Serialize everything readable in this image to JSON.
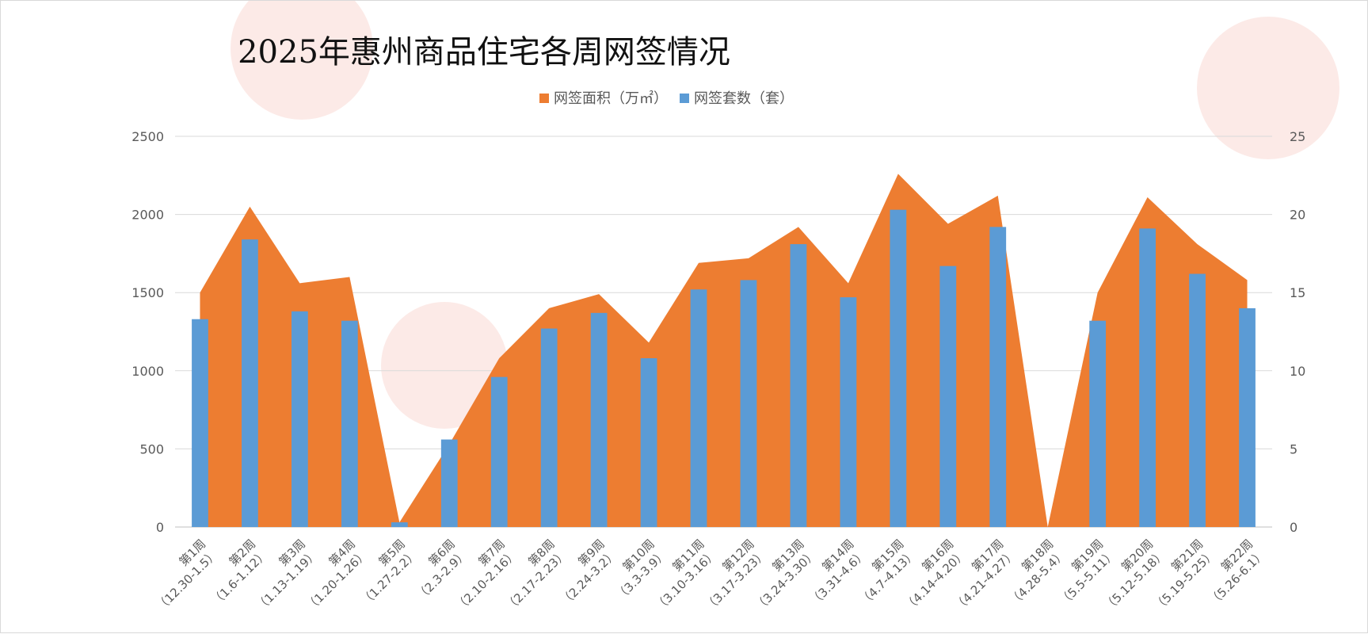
{
  "chart_data": {
    "type": "bar",
    "title": "2025年惠州商品住宅各周网签情况",
    "legend_position": "top",
    "grid": true,
    "categories": [
      [
        "第1周",
        "（12.30-1.5）"
      ],
      [
        "第2周",
        "（1.6-1.12）"
      ],
      [
        "第3周",
        "（1.13-1.19）"
      ],
      [
        "第4周",
        "（1.20-1.26）"
      ],
      [
        "第5周",
        "（1.27-2.2）"
      ],
      [
        "第6周",
        "（2.3-2.9）"
      ],
      [
        "第7周",
        "（2.10-2.16）"
      ],
      [
        "第8周",
        "（2.17-2.23）"
      ],
      [
        "第9周",
        "（2.24-3.2）"
      ],
      [
        "第10周",
        "（3.3-3.9）"
      ],
      [
        "第11周",
        "（3.10-3.16）"
      ],
      [
        "第12周",
        "（3.17-3.23）"
      ],
      [
        "第13周",
        "（3.24-3.30）"
      ],
      [
        "第14周",
        "（3.31-4.6）"
      ],
      [
        "第15周",
        "（4.7-4.13）"
      ],
      [
        "第16周",
        "（4.14-4.20）"
      ],
      [
        "第17周",
        "（4.21-4.27）"
      ],
      [
        "第18周",
        "（4.28-5.4）"
      ],
      [
        "第19周",
        "（5.5-5.11）"
      ],
      [
        "第20周",
        "（5.12-5.18）"
      ],
      [
        "第21周",
        "（5.19-5.25）"
      ],
      [
        "第22周",
        "（5.26-6.1）"
      ]
    ],
    "series": [
      {
        "name": "网签面积（万㎡）",
        "type": "area",
        "axis": "right",
        "color": "#ED7D31",
        "values": [
          15.0,
          20.5,
          15.6,
          16.0,
          0.3,
          5.3,
          10.8,
          14.0,
          14.9,
          11.8,
          16.9,
          17.2,
          19.2,
          15.6,
          22.6,
          19.4,
          21.2,
          0.0,
          15.0,
          21.1,
          18.1,
          15.8
        ]
      },
      {
        "name": "网签套数（套）",
        "type": "bar",
        "axis": "left",
        "color": "#5B9BD5",
        "values": [
          1330,
          1840,
          1380,
          1320,
          30,
          560,
          960,
          1270,
          1370,
          1080,
          1520,
          1580,
          1810,
          1470,
          2030,
          1670,
          1920,
          0,
          1320,
          1910,
          1620,
          1400
        ]
      }
    ],
    "y_left": {
      "ylim": [
        0,
        2500
      ],
      "ticks": [
        "0",
        "500",
        "1000",
        "1500",
        "2000",
        "2500"
      ]
    },
    "y_right": {
      "ylim": [
        0,
        25
      ],
      "ticks": [
        "0",
        "5",
        "10",
        "15",
        "20",
        "25"
      ]
    }
  }
}
